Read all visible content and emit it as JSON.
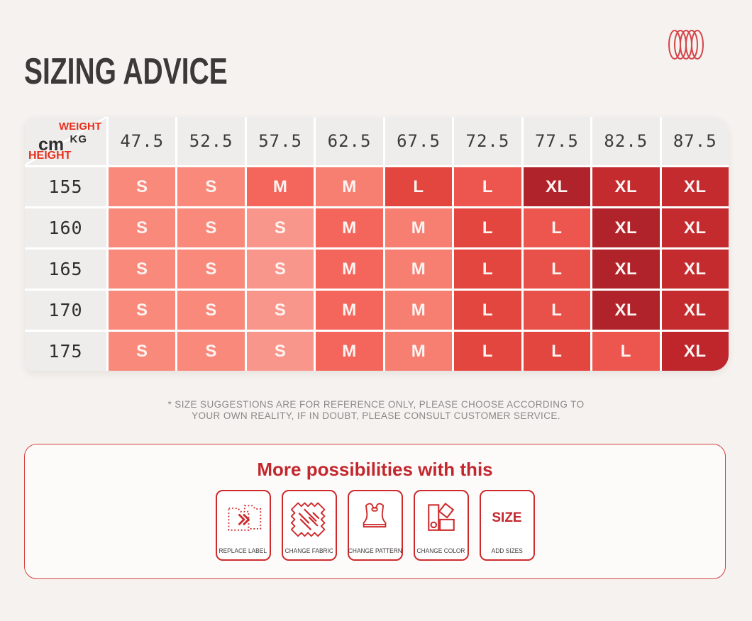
{
  "header": {
    "title": "SIZING ADVICE"
  },
  "logo": {
    "name": "coil-logo",
    "color": "#d4464b"
  },
  "colors": {
    "page_bg": "#f5f2ef",
    "accent_red": "#c2272d",
    "axis_label_red": "#e5301c",
    "header_cell_bg": "#efedec",
    "size_s": "#f8897b",
    "size_m": "#f4665c",
    "size_l": "#e3463f",
    "size_xl": "#c32b2f"
  },
  "table": {
    "corner": {
      "weight_label": "WEIGHT",
      "weight_unit": "KG",
      "height_unit": "cm",
      "height_label": "HEIGHT"
    },
    "weight_columns": [
      "47.5",
      "52.5",
      "57.5",
      "62.5",
      "67.5",
      "72.5",
      "77.5",
      "82.5",
      "87.5"
    ],
    "rows": [
      {
        "height": "155",
        "cells": [
          {
            "size": "S",
            "color": "#f8897b"
          },
          {
            "size": "S",
            "color": "#f8897b"
          },
          {
            "size": "M",
            "color": "#f4665c"
          },
          {
            "size": "M",
            "color": "#f67f72"
          },
          {
            "size": "L",
            "color": "#e3463f"
          },
          {
            "size": "L",
            "color": "#ec564e"
          },
          {
            "size": "XL",
            "color": "#b1232a"
          },
          {
            "size": "XL",
            "color": "#c32b2f"
          },
          {
            "size": "XL",
            "color": "#c32b2f"
          }
        ]
      },
      {
        "height": "160",
        "cells": [
          {
            "size": "S",
            "color": "#f8897b"
          },
          {
            "size": "S",
            "color": "#f8897b"
          },
          {
            "size": "S",
            "color": "#f9968b"
          },
          {
            "size": "M",
            "color": "#f4665c"
          },
          {
            "size": "M",
            "color": "#f67f72"
          },
          {
            "size": "L",
            "color": "#e3463f"
          },
          {
            "size": "L",
            "color": "#ec564e"
          },
          {
            "size": "XL",
            "color": "#b1232a"
          },
          {
            "size": "XL",
            "color": "#c32b2f"
          }
        ]
      },
      {
        "height": "165",
        "cells": [
          {
            "size": "S",
            "color": "#f8897b"
          },
          {
            "size": "S",
            "color": "#f8897b"
          },
          {
            "size": "S",
            "color": "#f9968b"
          },
          {
            "size": "M",
            "color": "#f4665c"
          },
          {
            "size": "M",
            "color": "#f67f72"
          },
          {
            "size": "L",
            "color": "#e3463f"
          },
          {
            "size": "L",
            "color": "#e8504a"
          },
          {
            "size": "XL",
            "color": "#b1232a"
          },
          {
            "size": "XL",
            "color": "#c32b2f"
          }
        ]
      },
      {
        "height": "170",
        "cells": [
          {
            "size": "S",
            "color": "#f8897b"
          },
          {
            "size": "S",
            "color": "#f8897b"
          },
          {
            "size": "S",
            "color": "#f9968b"
          },
          {
            "size": "M",
            "color": "#f4665c"
          },
          {
            "size": "M",
            "color": "#f67f72"
          },
          {
            "size": "L",
            "color": "#e3463f"
          },
          {
            "size": "L",
            "color": "#e8504a"
          },
          {
            "size": "XL",
            "color": "#b1232a"
          },
          {
            "size": "XL",
            "color": "#c32b2f"
          }
        ]
      },
      {
        "height": "175",
        "cells": [
          {
            "size": "S",
            "color": "#f8897b"
          },
          {
            "size": "S",
            "color": "#f8897b"
          },
          {
            "size": "S",
            "color": "#f9968b"
          },
          {
            "size": "M",
            "color": "#f4665c"
          },
          {
            "size": "M",
            "color": "#f67f72"
          },
          {
            "size": "L",
            "color": "#e3463f"
          },
          {
            "size": "L",
            "color": "#e3463f"
          },
          {
            "size": "L",
            "color": "#ec564e"
          },
          {
            "size": "XL",
            "color": "#bf262c"
          }
        ]
      }
    ]
  },
  "disclaimer": {
    "line1": "* SIZE SUGGESTIONS ARE FOR REFERENCE ONLY, PLEASE CHOOSE ACCORDING TO",
    "line2": "YOUR OWN REALITY, IF IN DOUBT, PLEASE CONSULT CUSTOMER SERVICE."
  },
  "promo": {
    "title": "More possibilities with this",
    "items": [
      {
        "icon": "replace-label-icon",
        "label": "REPLACE LABEL"
      },
      {
        "icon": "change-fabric-icon",
        "label": "CHANGE FABRIC"
      },
      {
        "icon": "change-pattern-icon",
        "label": "CHANGE PATTERN"
      },
      {
        "icon": "change-color-icon",
        "label": "CHANGE COLOR"
      },
      {
        "icon": "size-text-icon",
        "big_text": "SIZE",
        "label": "ADD SIZES"
      }
    ]
  },
  "chart_data": {
    "type": "heatmap",
    "title": "SIZING ADVICE",
    "xlabel": "WEIGHT KG",
    "ylabel": "HEIGHT cm",
    "x": [
      47.5,
      52.5,
      57.5,
      62.5,
      67.5,
      72.5,
      77.5,
      82.5,
      87.5
    ],
    "y": [
      155,
      160,
      165,
      170,
      175
    ],
    "values": [
      [
        "S",
        "S",
        "M",
        "M",
        "L",
        "L",
        "XL",
        "XL",
        "XL"
      ],
      [
        "S",
        "S",
        "S",
        "M",
        "M",
        "L",
        "L",
        "XL",
        "XL"
      ],
      [
        "S",
        "S",
        "S",
        "M",
        "M",
        "L",
        "L",
        "XL",
        "XL"
      ],
      [
        "S",
        "S",
        "S",
        "M",
        "M",
        "L",
        "L",
        "XL",
        "XL"
      ],
      [
        "S",
        "S",
        "S",
        "M",
        "M",
        "L",
        "L",
        "L",
        "XL"
      ]
    ],
    "legend_position": "none",
    "grid": true
  }
}
